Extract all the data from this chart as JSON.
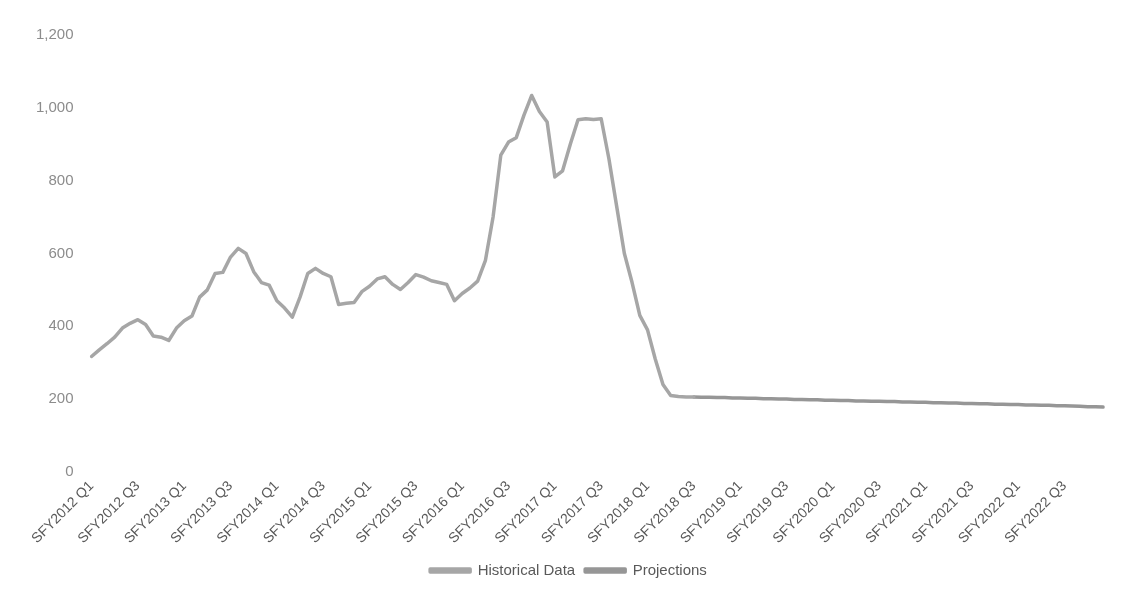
{
  "chart_data": {
    "type": "line",
    "categories": [
      "SFY2012 Q1",
      null,
      null,
      null,
      null,
      null,
      "SFY2012 Q3",
      null,
      null,
      null,
      null,
      null,
      "SFY2013 Q1",
      null,
      null,
      null,
      null,
      null,
      "SFY2013 Q3",
      null,
      null,
      null,
      null,
      null,
      "SFY2014 Q1",
      null,
      null,
      null,
      null,
      null,
      "SFY2014 Q3",
      null,
      null,
      null,
      null,
      null,
      "SFY2015 Q1",
      null,
      null,
      null,
      null,
      null,
      "SFY2015 Q3",
      null,
      null,
      null,
      null,
      null,
      "SFY2016 Q1",
      null,
      null,
      null,
      null,
      null,
      "SFY2016 Q3",
      null,
      null,
      null,
      null,
      null,
      "SFY2017 Q1",
      null,
      null,
      null,
      null,
      null,
      "SFY2017 Q3",
      null,
      null,
      null,
      null,
      null,
      "SFY2018 Q1",
      null,
      null,
      null,
      null,
      null,
      "SFY2018 Q3",
      null,
      null,
      null,
      null,
      null,
      "SFY2019 Q1",
      null,
      null,
      null,
      null,
      null,
      "SFY2019 Q3",
      null,
      null,
      null,
      null,
      null,
      "SFY2020 Q1",
      null,
      null,
      null,
      null,
      null,
      "SFY2020 Q3",
      null,
      null,
      null,
      null,
      null,
      "SFY2021 Q1",
      null,
      null,
      null,
      null,
      null,
      "SFY2021 Q3",
      null,
      null,
      null,
      null,
      null,
      "SFY2022 Q1",
      null,
      null,
      null,
      null,
      null,
      "SFY2022 Q3",
      null,
      null,
      null,
      null,
      null
    ],
    "series": [
      {
        "name": "Historical Data",
        "color": "#a6a6a6",
        "values": [
          317,
          335,
          352,
          370,
          395,
          408,
          418,
          405,
          373,
          370,
          361,
          395,
          415,
          428,
          480,
          500,
          545,
          548,
          590,
          614,
          600,
          550,
          520,
          513,
          470,
          450,
          425,
          480,
          545,
          559,
          545,
          536,
          460,
          463,
          465,
          495,
          510,
          530,
          536,
          515,
          501,
          520,
          542,
          535,
          525,
          520,
          515,
          470,
          490,
          505,
          524,
          580,
          700,
          870,
          906,
          918,
          980,
          1034,
          990,
          961,
          810,
          827,
          900,
          967,
          970,
          968,
          970,
          860,
          730,
          600,
          520,
          430,
          390,
          310,
          240,
          210,
          207,
          206,
          206,
          null,
          null,
          null,
          null,
          null,
          null,
          null,
          null,
          null,
          null,
          null,
          null,
          null,
          null,
          null,
          null,
          null,
          null,
          null,
          null,
          null,
          null,
          null,
          null,
          null,
          null,
          null,
          null,
          null,
          null,
          null,
          null,
          null,
          null,
          null,
          null,
          null,
          null,
          null,
          null,
          null,
          null,
          null,
          null,
          null,
          null,
          null,
          null,
          null,
          null,
          null,
          null,
          null
        ]
      },
      {
        "name": "Projections",
        "color": "#969696",
        "values": [
          null,
          null,
          null,
          null,
          null,
          null,
          null,
          null,
          null,
          null,
          null,
          null,
          null,
          null,
          null,
          null,
          null,
          null,
          null,
          null,
          null,
          null,
          null,
          null,
          null,
          null,
          null,
          null,
          null,
          null,
          null,
          null,
          null,
          null,
          null,
          null,
          null,
          null,
          null,
          null,
          null,
          null,
          null,
          null,
          null,
          null,
          null,
          null,
          null,
          null,
          null,
          null,
          null,
          null,
          null,
          null,
          null,
          null,
          null,
          null,
          null,
          null,
          null,
          null,
          null,
          null,
          null,
          null,
          null,
          null,
          null,
          null,
          null,
          null,
          null,
          null,
          null,
          null,
          206,
          205,
          205,
          204,
          204,
          203,
          203,
          202,
          202,
          201,
          201,
          200,
          200,
          199,
          199,
          198,
          198,
          197,
          197,
          196,
          196,
          195,
          195,
          194,
          194,
          193,
          193,
          192,
          192,
          191,
          191,
          190,
          190,
          189,
          189,
          188,
          188,
          187,
          187,
          186,
          186,
          185,
          185,
          184,
          184,
          183,
          183,
          182,
          182,
          181,
          180,
          179,
          179,
          178
        ]
      }
    ],
    "ylim": [
      0,
      1200
    ],
    "yticks": [
      0,
      200,
      400,
      600,
      800,
      {
        "value": 1000,
        "label": "1,000"
      },
      {
        "value": 1200,
        "label": "1,200"
      }
    ],
    "grid": false,
    "legend": "bottom",
    "marker": "none",
    "line_style": "solid"
  }
}
